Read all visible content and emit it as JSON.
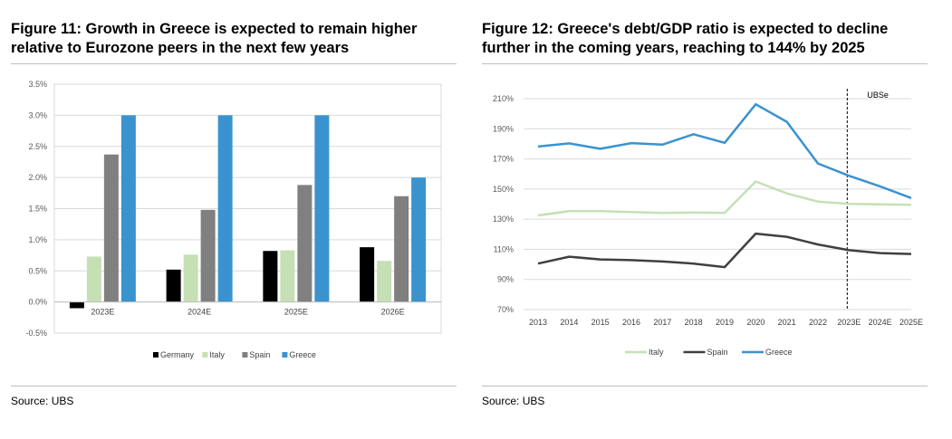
{
  "figure11": {
    "title": "Figure 11: Growth in Greece is expected to remain higher relative to Eurozone peers in the next few years",
    "source": "Source: UBS",
    "chart_data": {
      "type": "bar",
      "categories": [
        "2023E",
        "2024E",
        "2025E",
        "2026E"
      ],
      "series": [
        {
          "name": "Germany",
          "values": [
            -0.1,
            0.52,
            0.82,
            0.88
          ],
          "color": "#000000"
        },
        {
          "name": "Italy",
          "values": [
            0.73,
            0.76,
            0.83,
            0.66
          ],
          "color": "#c5e0b4"
        },
        {
          "name": "Spain",
          "values": [
            2.37,
            1.48,
            1.88,
            1.7
          ],
          "color": "#808080"
        },
        {
          "name": "Greece",
          "values": [
            3.0,
            3.0,
            3.0,
            2.0
          ],
          "color": "#3a93cf"
        }
      ],
      "ylim": [
        -0.5,
        3.5
      ],
      "yticks": [
        "-0.5%",
        "0.0%",
        "0.5%",
        "1.0%",
        "1.5%",
        "2.0%",
        "2.5%",
        "3.0%",
        "3.5%"
      ],
      "ytick_values": [
        -0.5,
        0,
        0.5,
        1.0,
        1.5,
        2.0,
        2.5,
        3.0,
        3.5
      ],
      "grid": true,
      "legend": "bottom"
    }
  },
  "figure12": {
    "title": "Figure 12: Greece's debt/GDP ratio is expected to decline further in the coming years, reaching to 144% by 2025",
    "source": "Source: UBS",
    "chart_data": {
      "type": "line",
      "x": [
        "2013",
        "2014",
        "2015",
        "2016",
        "2017",
        "2018",
        "2019",
        "2020",
        "2021",
        "2022",
        "2023E",
        "2024E",
        "2025E"
      ],
      "series": [
        {
          "name": "Italy",
          "values": [
            132.5,
            135.4,
            135.3,
            134.8,
            134.2,
            134.4,
            134.2,
            155.0,
            147.1,
            141.7,
            140.2,
            139.8,
            139.6
          ],
          "color": "#c5e0b4"
        },
        {
          "name": "Spain",
          "values": [
            100.5,
            105.1,
            103.3,
            102.8,
            101.9,
            100.5,
            98.2,
            120.4,
            118.3,
            113.2,
            109.4,
            107.5,
            106.9
          ],
          "color": "#404040"
        },
        {
          "name": "Greece",
          "values": [
            178.2,
            180.3,
            176.7,
            180.5,
            179.5,
            186.4,
            180.7,
            206.3,
            194.6,
            167.0,
            158.8,
            151.8,
            144.0
          ],
          "color": "#3a93cf"
        }
      ],
      "ylim": [
        70,
        210
      ],
      "yticks": [
        "70%",
        "90%",
        "110%",
        "130%",
        "150%",
        "170%",
        "190%",
        "210%"
      ],
      "ytick_values": [
        70,
        90,
        110,
        130,
        150,
        170,
        190,
        210
      ],
      "annotation": "UBSe",
      "forecast_start": "2023E",
      "grid": true,
      "legend": "bottom"
    }
  }
}
